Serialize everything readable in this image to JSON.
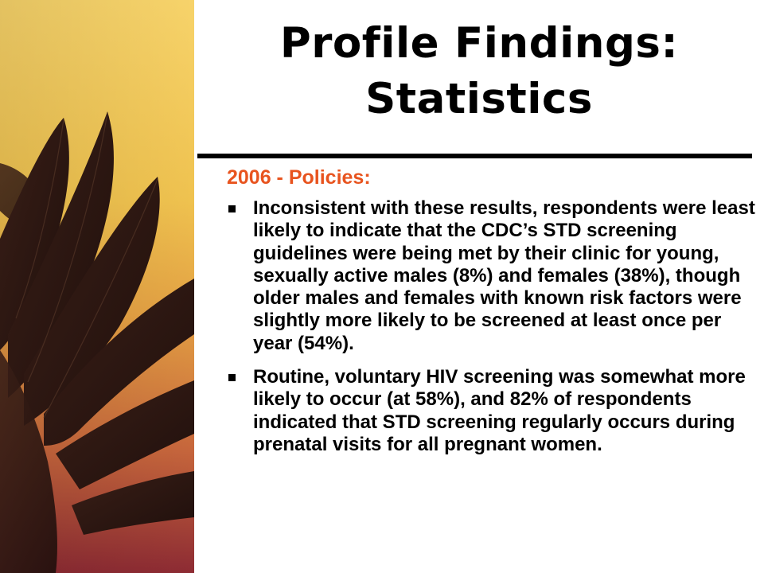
{
  "slide": {
    "title_line_1": "Profile Findings:",
    "title_line_2": "Statistics",
    "subheading": "2006 - Policies:",
    "bullets": [
      "Inconsistent with these results, respondents were least likely to indicate that the CDC’s STD screening guidelines were being met by their clinic for young, sexually active males (8%) and females (38%), though older males and females with known risk factors were slightly more likely to be screened at least once per year (54%).",
      "Routine, voluntary HIV screening was somewhat more likely to occur (at 58%), and 82% of respondents indicated that STD screening regularly occurs during prenatal visits for all pregnant women."
    ]
  },
  "colors": {
    "subheading": "#e8541f",
    "title": "#000000",
    "gradient_top": "#f1c546",
    "gradient_bottom": "#9a3238",
    "feather": "#2b1712"
  },
  "icons": {
    "bullet": "square-bullet-icon",
    "decoration": "feather-wing-art"
  }
}
